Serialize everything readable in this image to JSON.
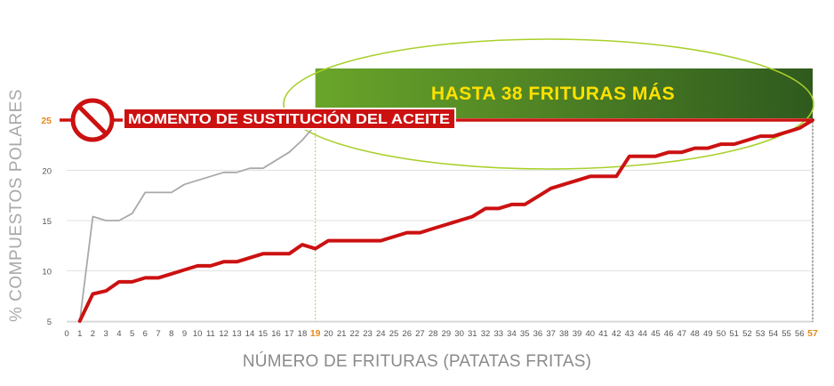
{
  "chart_data": {
    "type": "line",
    "ylabel": "% COMPUESTOS POLARES",
    "xlabel": "NÚMERO DE FRITURAS (PATATAS FRITAS)",
    "x_range": [
      0,
      57
    ],
    "ylim": [
      5,
      25
    ],
    "y_ticks": [
      5,
      10,
      15,
      20,
      25
    ],
    "y_tick_highlight": 25,
    "x_ticks_highlight": [
      19,
      57
    ],
    "grid": true,
    "series": [
      {
        "color": "#a9a9a9",
        "x": [
          1,
          2,
          3,
          4,
          5,
          6,
          7,
          8,
          9,
          10,
          11,
          12,
          13,
          14,
          15,
          16,
          17,
          18,
          19
        ],
        "values": [
          5,
          15.4,
          15,
          15,
          15.7,
          17.8,
          17.8,
          17.8,
          18.6,
          19,
          19.4,
          19.8,
          19.8,
          20.2,
          20.2,
          21,
          21.8,
          23,
          24.5
        ]
      },
      {
        "color": "#cc1111",
        "x": [
          1,
          2,
          3,
          4,
          5,
          6,
          7,
          8,
          9,
          10,
          11,
          12,
          13,
          14,
          15,
          16,
          17,
          18,
          19,
          20,
          21,
          22,
          23,
          24,
          25,
          26,
          27,
          28,
          29,
          30,
          31,
          32,
          33,
          34,
          35,
          36,
          37,
          38,
          39,
          40,
          41,
          42,
          43,
          44,
          45,
          46,
          47,
          48,
          49,
          50,
          51,
          52,
          53,
          54,
          55,
          56,
          57
        ],
        "values": [
          5,
          7.7,
          8,
          8.9,
          8.9,
          9.3,
          9.3,
          9.7,
          10.1,
          10.5,
          10.5,
          10.9,
          10.9,
          11.3,
          11.7,
          11.7,
          11.7,
          12.6,
          12.2,
          13,
          13,
          13,
          13,
          13,
          13.4,
          13.8,
          13.8,
          14.2,
          14.6,
          15,
          15.4,
          16.2,
          16.2,
          16.6,
          16.6,
          17.4,
          18.2,
          18.6,
          19,
          19.4,
          19.4,
          19.4,
          21.4,
          21.4,
          21.4,
          21.8,
          21.8,
          22.2,
          22.2,
          22.6,
          22.6,
          23,
          23.4,
          23.4,
          23.8,
          24.2,
          25
        ]
      }
    ],
    "annotations": {
      "limit_label": "MOMENTO DE SUSTITUCIÓN DEL ACEITE",
      "limit_value": 25,
      "banner": "HASTA 38 FRITURAS MÁS",
      "banner_from": 19,
      "banner_to": 57
    }
  },
  "colors": {
    "red": "#cc1111",
    "gray_line": "#a9a9a9",
    "banner_dark": "#2f5a1e",
    "banner_light": "#6aa52a",
    "banner_text": "#ffe100",
    "ellipse": "#a8d02a",
    "highlight_tick": "#e8891d"
  },
  "icons": {
    "limit": "no-sign-icon"
  }
}
